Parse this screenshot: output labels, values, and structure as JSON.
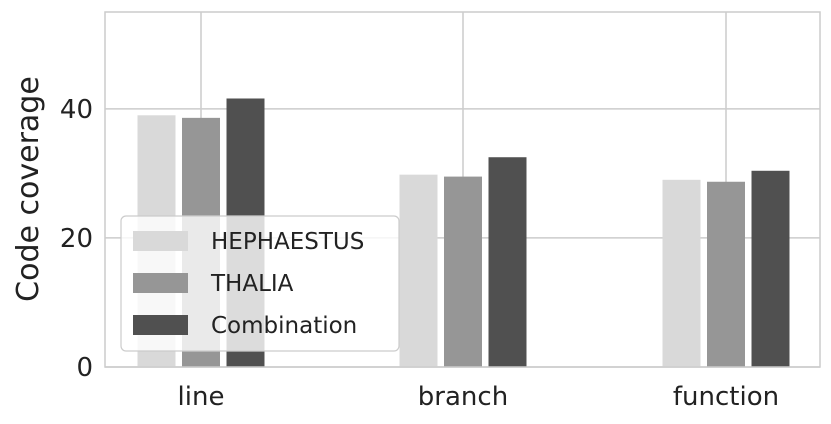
{
  "chart_data": {
    "type": "bar",
    "title": "",
    "xlabel": "",
    "ylabel": "Code coverage",
    "categories": [
      "line",
      "branch",
      "function"
    ],
    "series": [
      {
        "name": "HEPHAESTUS",
        "values": [
          39.0,
          29.8,
          29.0
        ],
        "color": "#d9d9d9"
      },
      {
        "name": "THALIA",
        "values": [
          38.6,
          29.5,
          28.7
        ],
        "color": "#969696"
      },
      {
        "name": "Combination",
        "values": [
          41.6,
          32.5,
          30.4
        ],
        "color": "#505050"
      }
    ],
    "ylim": [
      0,
      55
    ],
    "yticks": [
      0,
      20,
      40
    ],
    "grid": true,
    "legend_position": "lower-left"
  }
}
